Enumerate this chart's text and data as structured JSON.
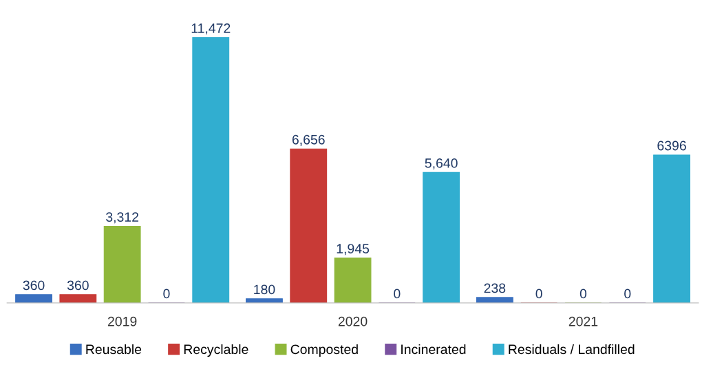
{
  "chart_data": {
    "type": "bar",
    "categories": [
      "2019",
      "2020",
      "2021"
    ],
    "series": [
      {
        "name": "Reusable",
        "color": "#3a70c0",
        "values": [
          360,
          180,
          238
        ],
        "value_labels": [
          "360",
          "180",
          "238"
        ]
      },
      {
        "name": "Recyclable",
        "color": "#c83a36",
        "values": [
          360,
          6656,
          0
        ],
        "value_labels": [
          "360",
          "6,656",
          "0"
        ]
      },
      {
        "name": "Composted",
        "color": "#8fb73a",
        "values": [
          3312,
          1945,
          0
        ],
        "value_labels": [
          "3,312",
          "1,945",
          "0"
        ]
      },
      {
        "name": "Incinerated",
        "color": "#7a52a0",
        "values": [
          0,
          0,
          0
        ],
        "value_labels": [
          "0",
          "0",
          "0"
        ]
      },
      {
        "name": "Residuals / Landfilled",
        "color": "#31aed0",
        "values": [
          11472,
          5640,
          6396
        ],
        "value_labels": [
          "11,472",
          "5,640",
          "6396"
        ]
      }
    ],
    "legend": "bottom",
    "grid": false,
    "tick_labels": "x"
  }
}
